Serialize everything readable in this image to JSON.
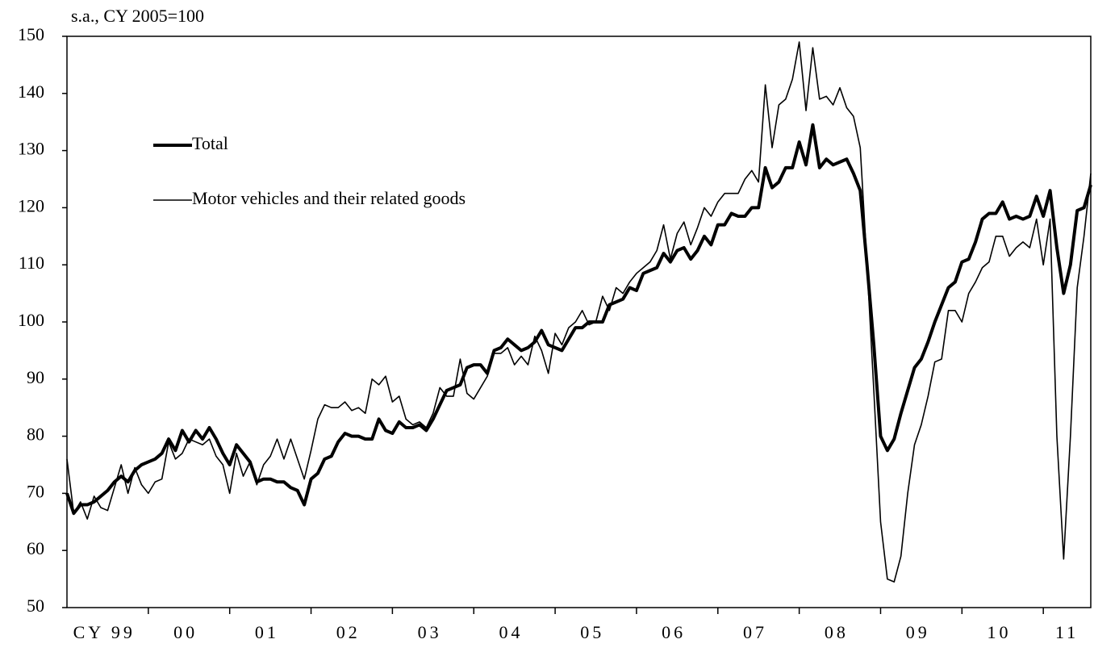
{
  "chart_data": {
    "type": "line",
    "subtitle": "s.a., CY 2005=100",
    "categories": [
      "CY 99",
      null,
      null,
      null,
      null,
      null,
      null,
      null,
      null,
      null,
      null,
      null,
      "00",
      null,
      null,
      null,
      null,
      null,
      null,
      null,
      null,
      null,
      null,
      null,
      "01",
      null,
      null,
      null,
      null,
      null,
      null,
      null,
      null,
      null,
      null,
      null,
      "02",
      null,
      null,
      null,
      null,
      null,
      null,
      null,
      null,
      null,
      null,
      null,
      "03",
      null,
      null,
      null,
      null,
      null,
      null,
      null,
      null,
      null,
      null,
      null,
      "04",
      null,
      null,
      null,
      null,
      null,
      null,
      null,
      null,
      null,
      null,
      null,
      "05",
      null,
      null,
      null,
      null,
      null,
      null,
      null,
      null,
      null,
      null,
      null,
      "06",
      null,
      null,
      null,
      null,
      null,
      null,
      null,
      null,
      null,
      null,
      null,
      "07",
      null,
      null,
      null,
      null,
      null,
      null,
      null,
      null,
      null,
      null,
      null,
      "08",
      null,
      null,
      null,
      null,
      null,
      null,
      null,
      null,
      null,
      null,
      null,
      "09",
      null,
      null,
      null,
      null,
      null,
      null,
      null,
      null,
      null,
      null,
      null,
      "10",
      null,
      null,
      null,
      null,
      null,
      null,
      null,
      null,
      null,
      null,
      null,
      "11",
      null,
      null,
      null,
      null,
      null,
      null,
      null
    ],
    "series": [
      {
        "name": "Total",
        "color": "#000000",
        "width": 4,
        "values": [
          70,
          66.5,
          68,
          68,
          68.5,
          69.5,
          70.5,
          72,
          73,
          72,
          74,
          75,
          75.5,
          76,
          77,
          79.5,
          77.5,
          81,
          79,
          81,
          79.5,
          81.5,
          79.5,
          77,
          75,
          78.5,
          77,
          75.5,
          72,
          72.5,
          72.5,
          72,
          72,
          71,
          70.5,
          68,
          72.5,
          73.5,
          76,
          76.5,
          79,
          80.5,
          80,
          80,
          79.5,
          79.5,
          83,
          81,
          80.5,
          82.5,
          81.5,
          81.5,
          82,
          81,
          83,
          85.5,
          88,
          88.5,
          89,
          92,
          92.5,
          92.5,
          91,
          95,
          95.5,
          97,
          96,
          95,
          95.5,
          96.5,
          98.5,
          96,
          95.5,
          95,
          97,
          99,
          99,
          100,
          100,
          100,
          103,
          103.5,
          104,
          106,
          105.5,
          108.5,
          109,
          109.5,
          112,
          110.5,
          112.5,
          113,
          111,
          112.5,
          115,
          113.5,
          117,
          117,
          119,
          118.5,
          118.5,
          120,
          120,
          127,
          123.5,
          124.5,
          127,
          127,
          131.5,
          127.5,
          134.5,
          127,
          128.5,
          127.5,
          128,
          128.5,
          126,
          123,
          110,
          96,
          80,
          77.5,
          79.5,
          84,
          88,
          92,
          93.5,
          96.5,
          100,
          103,
          106,
          107,
          110.5,
          111,
          114,
          118,
          119,
          119,
          121,
          118,
          118.5,
          118,
          118.5,
          122,
          118.5,
          123,
          113,
          105,
          110,
          119.5,
          120,
          124
        ]
      },
      {
        "name": "Motor vehicles and their related goods",
        "color": "#000000",
        "width": 1.6,
        "values": [
          76,
          66.5,
          68.5,
          65.5,
          69.5,
          67.5,
          67,
          71,
          75,
          70,
          74.5,
          71.5,
          70,
          72,
          72.5,
          79,
          76,
          77,
          79.5,
          79,
          78.5,
          79.5,
          76.5,
          75,
          70,
          77,
          73,
          75.5,
          71.5,
          75,
          76.5,
          79.5,
          76,
          79.5,
          76,
          72.5,
          77.5,
          83,
          85.5,
          85,
          85,
          86,
          84.5,
          85,
          84,
          90,
          89,
          90.5,
          86,
          87,
          83,
          82,
          82.5,
          81.5,
          84,
          88.5,
          87,
          87,
          93.5,
          87.5,
          86.5,
          88.5,
          90.5,
          94.5,
          94.5,
          95.5,
          92.5,
          94,
          92.5,
          97.5,
          95,
          91,
          98,
          96,
          99,
          100,
          102,
          99.5,
          100,
          104.5,
          102,
          106,
          105,
          107,
          108.5,
          109.5,
          110.5,
          112.5,
          117,
          111,
          115.5,
          117.5,
          113.5,
          116.5,
          120,
          118.5,
          121,
          122.5,
          122.5,
          122.5,
          125,
          126.5,
          124.5,
          141.5,
          130.5,
          138,
          139,
          142.5,
          149,
          137,
          148,
          139,
          139.5,
          138,
          141,
          137.5,
          136,
          130.5,
          110,
          88,
          65,
          55,
          54.5,
          59,
          70,
          78.5,
          82,
          87,
          93,
          93.5,
          102,
          102,
          100,
          105,
          107,
          109.5,
          110.5,
          115,
          115,
          111.5,
          113,
          114,
          113,
          118,
          110,
          118,
          80,
          58.5,
          80,
          106,
          115,
          126
        ]
      }
    ],
    "ylim": [
      50,
      150
    ],
    "yticks": [
      50,
      60,
      70,
      80,
      90,
      100,
      110,
      120,
      130,
      140,
      150
    ],
    "legend": "upper left",
    "grid": false
  }
}
